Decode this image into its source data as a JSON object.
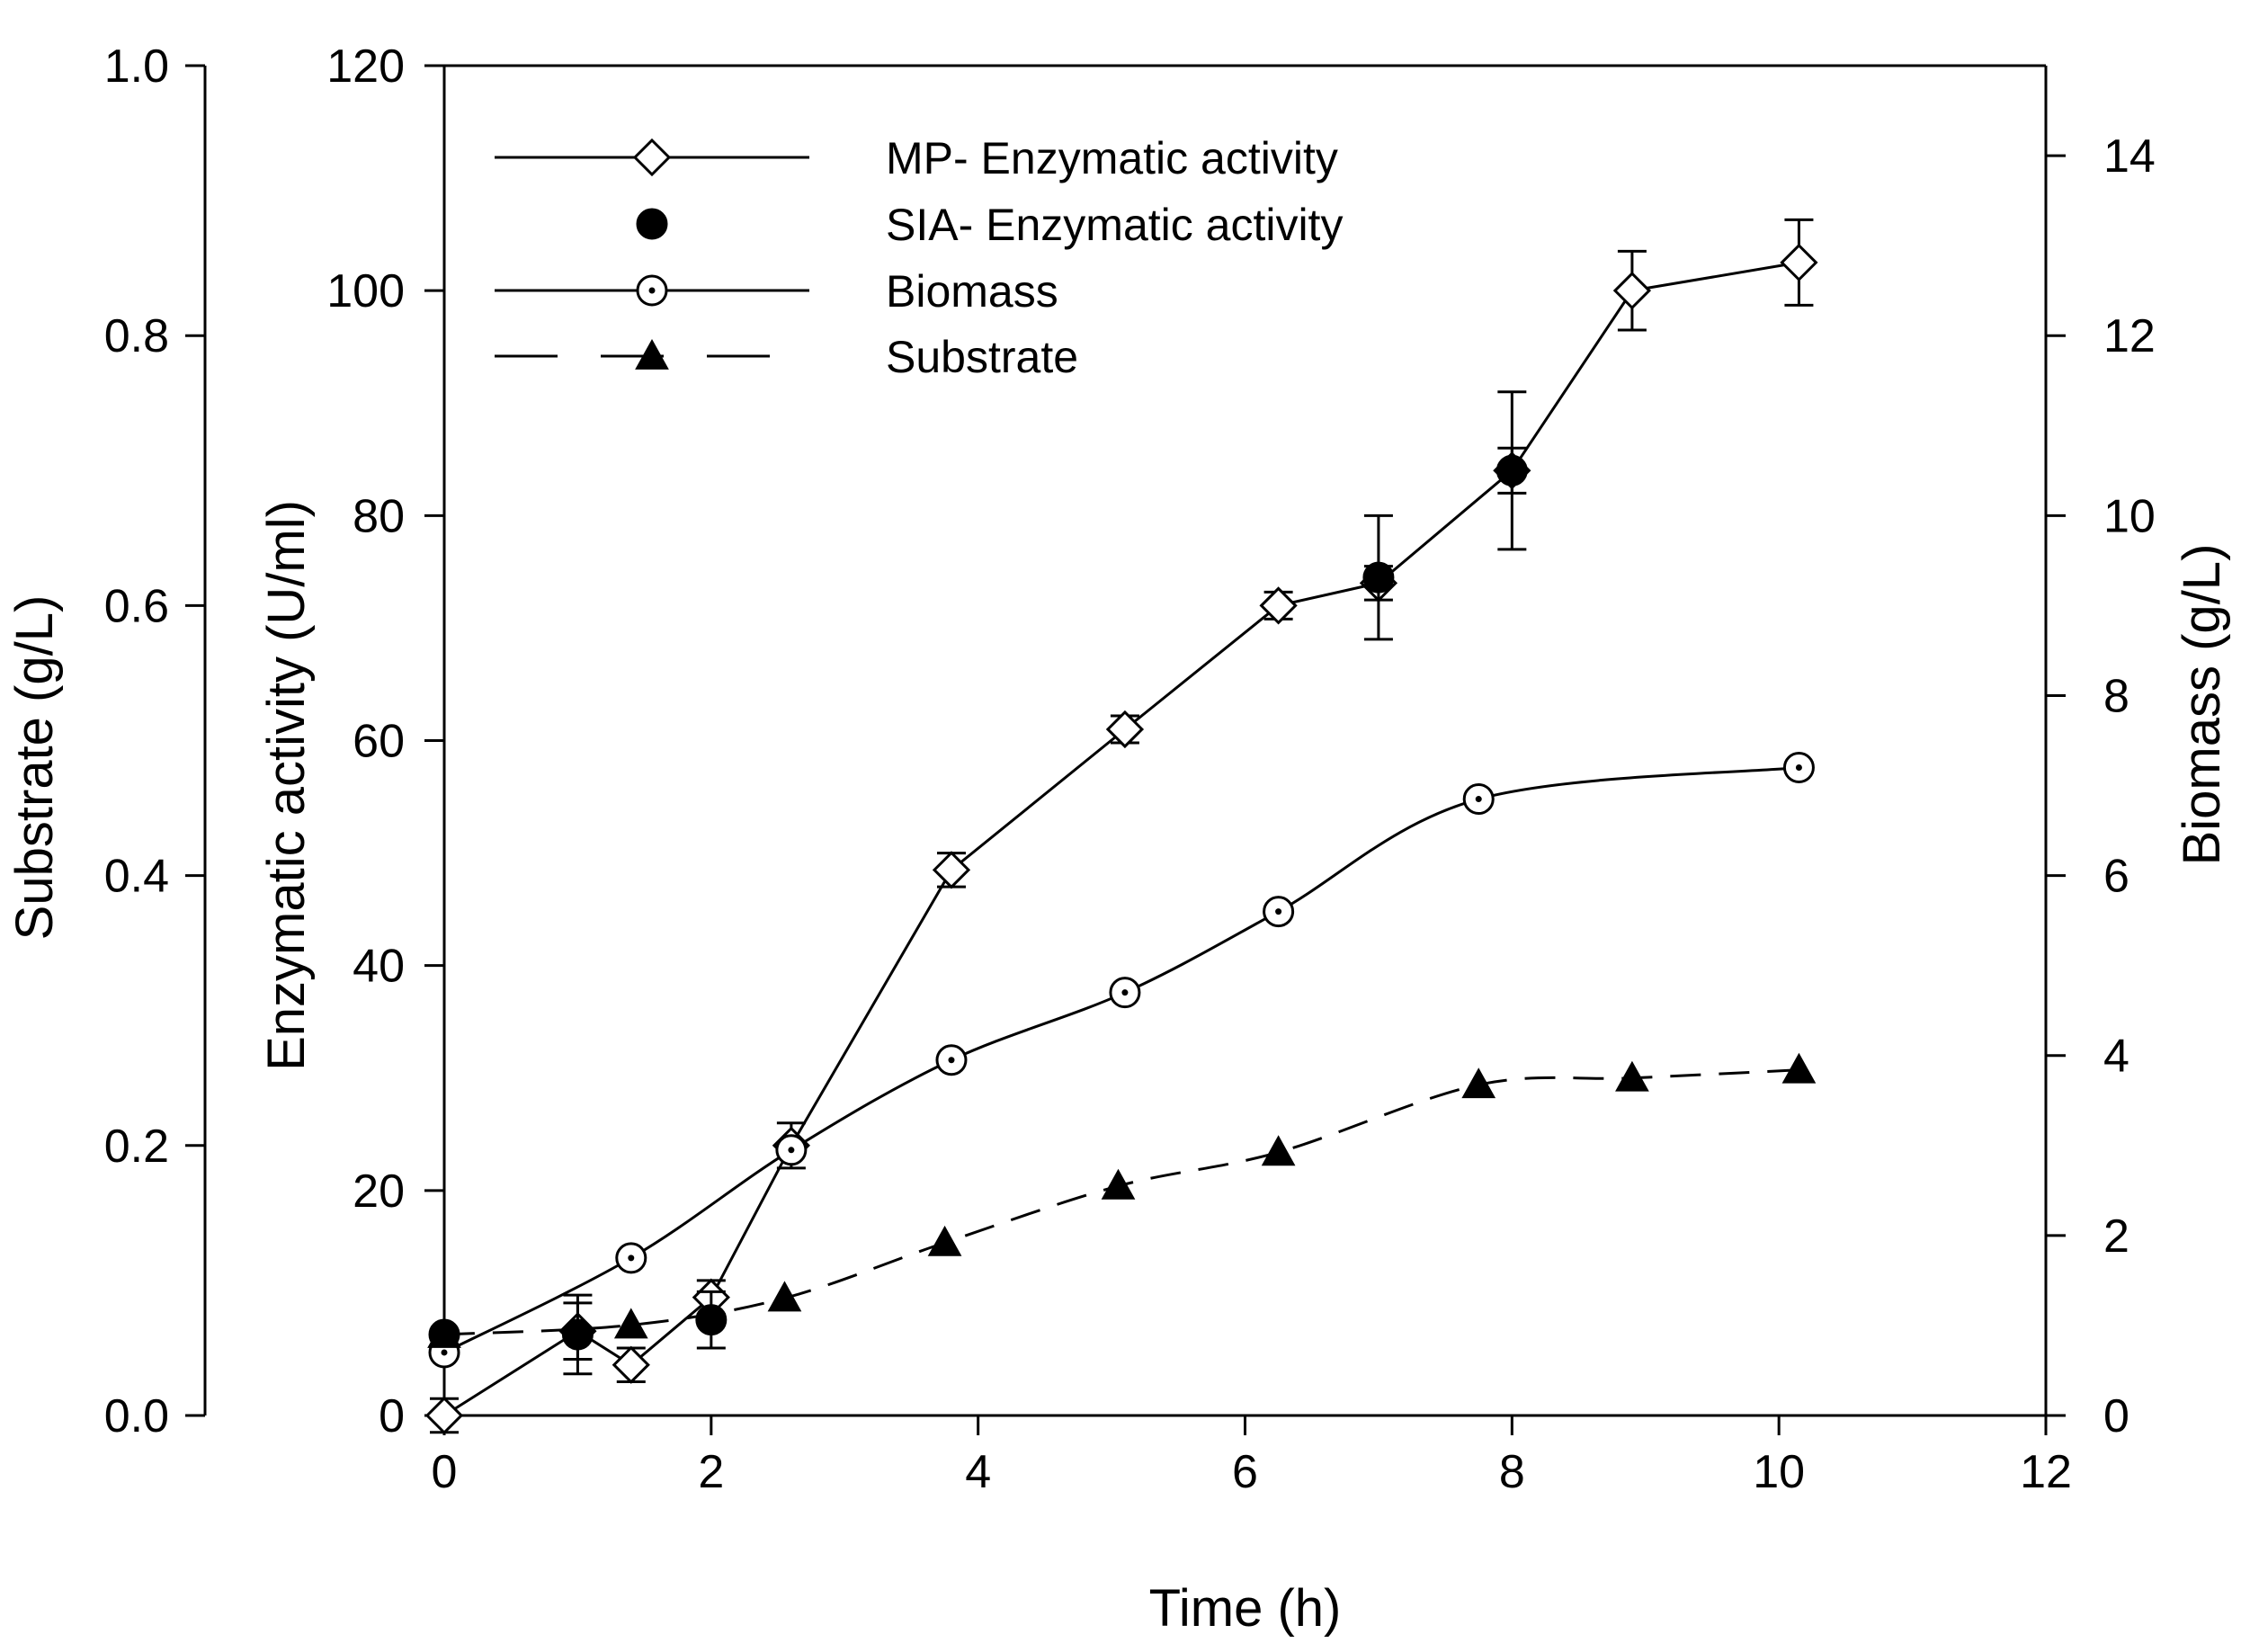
{
  "chart_data": {
    "type": "line",
    "title": "",
    "xlabel": "Time  (h)",
    "xlim": [
      0,
      12
    ],
    "x_ticks": [
      "0",
      "2",
      "4",
      "6",
      "8",
      "10",
      "12"
    ],
    "axes": {
      "enzymatic": {
        "label": "Enzymatic activity (U/ml)",
        "lim": [
          0,
          120
        ],
        "ticks": [
          "0",
          "20",
          "40",
          "60",
          "80",
          "100",
          "120"
        ]
      },
      "substrate": {
        "label": "Substrate (g/L)",
        "lim": [
          0,
          1
        ],
        "ticks": [
          "0.0",
          "0.2",
          "0.4",
          "0.6",
          "0.8",
          "1.0"
        ]
      },
      "biomass": {
        "label": "Biomass (g/L)",
        "lim": [
          0,
          15
        ],
        "ticks": [
          "0",
          "2",
          "4",
          "6",
          "8",
          "10",
          "12",
          "14"
        ]
      }
    },
    "series": [
      {
        "name": "MP- Enzymatic activity",
        "axis": "enzymatic",
        "marker": "diamond-open",
        "line": "solid",
        "x": [
          0,
          1,
          1.4,
          2,
          2.6,
          3.8,
          5.1,
          6.25,
          7,
          8,
          8.9,
          10.15
        ],
        "y": [
          0,
          7.5,
          4.5,
          10.5,
          24,
          48.5,
          61,
          72,
          74,
          84,
          100,
          102.5
        ],
        "err": [
          1.5,
          2.5,
          1.5,
          1.5,
          2,
          1.5,
          1.2,
          1.2,
          1.5,
          2,
          3.5,
          3.8
        ]
      },
      {
        "name": "SIA- Enzymatic activity",
        "axis": "enzymatic",
        "marker": "circle-filled",
        "line": "none",
        "x": [
          0,
          1,
          2,
          7,
          8
        ],
        "y": [
          7.2,
          7.2,
          8.5,
          74.5,
          84
        ],
        "err": [
          0,
          3.5,
          2.5,
          5.5,
          7
        ]
      },
      {
        "name": "Biomass",
        "axis": "biomass",
        "marker": "circle-dot",
        "line": "solid",
        "x": [
          0,
          1.4,
          2.6,
          3.8,
          5.1,
          6.25,
          7.75,
          10.15
        ],
        "y": [
          0.7,
          1.75,
          2.95,
          3.95,
          4.7,
          5.6,
          6.85,
          7.2
        ]
      },
      {
        "name": "Substrate",
        "axis": "substrate",
        "marker": "triangle-filled",
        "line": "dashed",
        "x": [
          0,
          1.4,
          2.55,
          3.75,
          5.05,
          6.25,
          7.75,
          8.9,
          10.15
        ],
        "y": [
          0.06,
          0.067,
          0.087,
          0.128,
          0.17,
          0.195,
          0.245,
          0.25,
          0.256
        ]
      }
    ],
    "legend": {
      "position": "top-left",
      "entries": [
        "MP- Enzymatic activity",
        "SIA- Enzymatic activity",
        "Biomass",
        "Substrate"
      ]
    }
  }
}
